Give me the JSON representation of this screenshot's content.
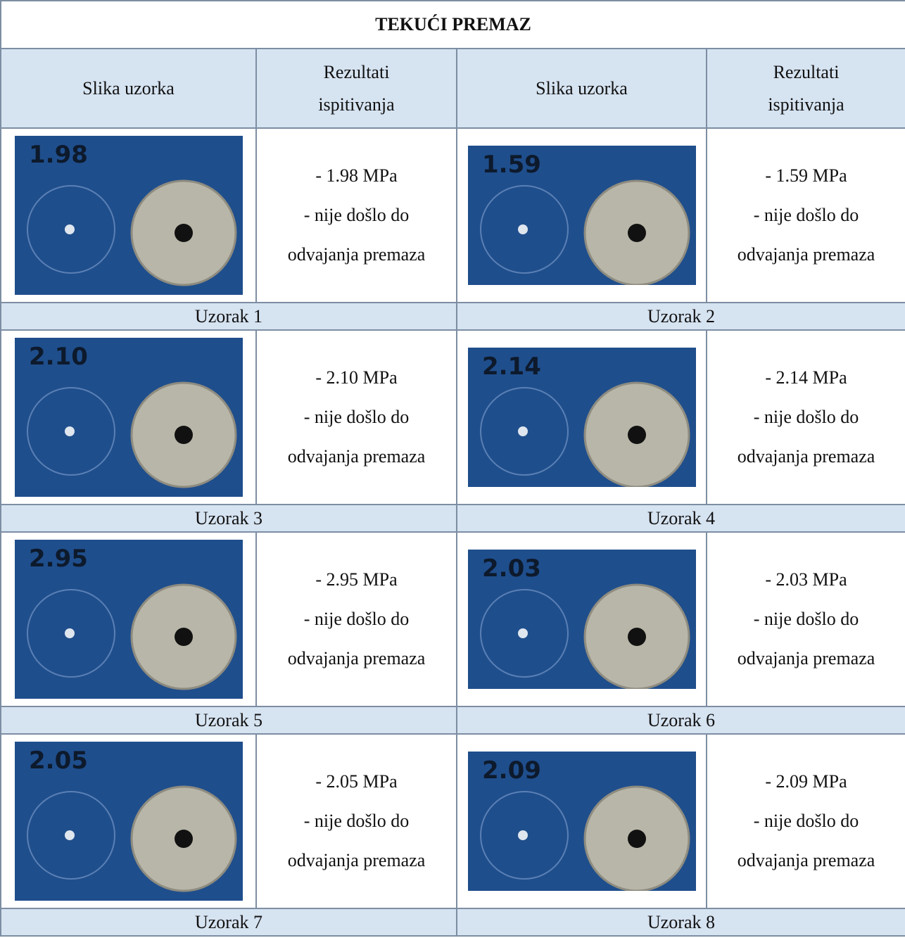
{
  "title": "TEKUĆI PREMAZ",
  "headers": [
    "Slika uzorka",
    "Rezultati ispitivanja",
    "Slika uzorka",
    "Rezultati ispitivanja"
  ],
  "samples": [
    {
      "label": "Uzorak 1",
      "photo_label": "1.98",
      "result_lines": [
        "- 1.98 MPa",
        "- nije došlo do",
        "odvajanja premaza"
      ]
    },
    {
      "label": "Uzorak 2",
      "photo_label": "1.59",
      "result_lines": [
        "- 1.59 MPa",
        "- nije došlo do",
        "odvajanja premaza"
      ]
    },
    {
      "label": "Uzorak 3",
      "photo_label": "2.10",
      "result_lines": [
        "- 2.10 MPa",
        "- nije došlo do",
        "odvajanja premaza"
      ]
    },
    {
      "label": "Uzorak 4",
      "photo_label": "2.14",
      "result_lines": [
        "- 2.14 MPa",
        "- nije došlo do",
        "odvajanja premaza"
      ]
    },
    {
      "label": "Uzorak 5",
      "photo_label": "2.95",
      "result_lines": [
        "- 2.95 MPa",
        "- nije došlo do",
        "odvajanja premaza"
      ]
    },
    {
      "label": "Uzorak 6",
      "photo_label": "2.03",
      "result_lines": [
        "- 2.03 MPa",
        "- nije došlo do",
        "odvajanja premaza"
      ]
    },
    {
      "label": "Uzorak 7",
      "photo_label": "2.05",
      "result_lines": [
        "- 2.05 MPa",
        "- nije došlo do",
        "odvajanja premaza"
      ]
    },
    {
      "label": "Uzorak 8",
      "photo_label": "2.09",
      "result_lines": [
        "- 2.09 MPa",
        "- nije došlo do",
        "odvajanja premaza"
      ]
    }
  ]
}
